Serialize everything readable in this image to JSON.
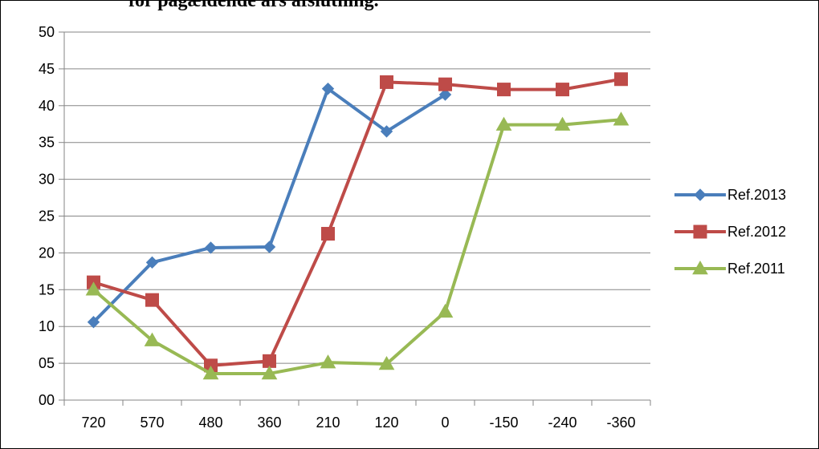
{
  "chart_data": {
    "type": "line",
    "title": "for pågældende års afslutning.",
    "categories": [
      "720",
      "570",
      "480",
      "360",
      "210",
      "120",
      "0",
      "-150",
      "-240",
      "-360"
    ],
    "y_ticks": [
      "00",
      "05",
      "10",
      "15",
      "20",
      "25",
      "30",
      "35",
      "40",
      "45",
      "50"
    ],
    "ylim": [
      0,
      50
    ],
    "grid": true,
    "legend_position": "right",
    "series": [
      {
        "name": "Ref.2013",
        "color": "#4A7EBB",
        "marker": "diamond",
        "values": [
          10.6,
          18.7,
          20.7,
          20.8,
          42.3,
          36.5,
          41.5,
          null,
          null,
          null
        ]
      },
      {
        "name": "Ref.2012",
        "color": "#BE4B48",
        "marker": "square",
        "values": [
          16.0,
          13.6,
          4.7,
          5.3,
          22.6,
          43.2,
          42.9,
          42.2,
          42.2,
          43.6
        ]
      },
      {
        "name": "Ref.2011",
        "color": "#98B954",
        "marker": "triangle",
        "values": [
          15.0,
          8.1,
          3.6,
          3.6,
          5.1,
          4.9,
          12.0,
          37.4,
          37.4,
          38.1
        ]
      }
    ]
  }
}
